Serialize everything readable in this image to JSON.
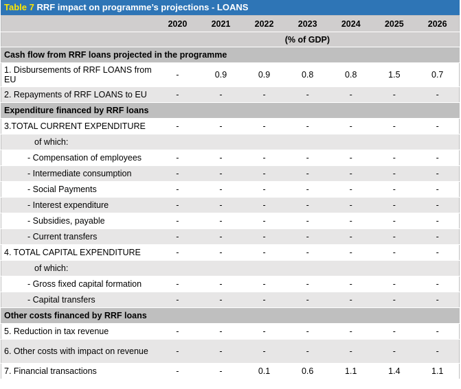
{
  "title": {
    "number": "Table 7",
    "text": "RRF impact on programme’s projections - LOANS"
  },
  "years": [
    "2020",
    "2021",
    "2022",
    "2023",
    "2024",
    "2025",
    "2026"
  ],
  "unit": "(% of GDP)",
  "rows": [
    {
      "kind": "section",
      "label": "Cash flow from RRF loans projected in the programme"
    },
    {
      "kind": "data",
      "shade": "light",
      "tall": true,
      "label": "1. Disbursements of RRF LOANS from EU",
      "values": [
        "-",
        "0.9",
        "0.9",
        "0.8",
        "0.8",
        "1.5",
        "0.7"
      ]
    },
    {
      "kind": "data",
      "shade": "grey",
      "label": "2. Repayments of RRF LOANS to EU",
      "values": [
        "-",
        "-",
        "-",
        "-",
        "-",
        "-",
        "-"
      ]
    },
    {
      "kind": "section",
      "label": "Expenditure financed by RRF loans"
    },
    {
      "kind": "data",
      "shade": "light",
      "label": "3.TOTAL CURRENT EXPENDITURE",
      "values": [
        "-",
        "-",
        "-",
        "-",
        "-",
        "-",
        "-"
      ]
    },
    {
      "kind": "of",
      "shade": "grey",
      "label": "of which:"
    },
    {
      "kind": "item",
      "shade": "light",
      "label": "- Compensation of employees",
      "values": [
        "-",
        "-",
        "-",
        "-",
        "-",
        "-",
        "-"
      ]
    },
    {
      "kind": "item",
      "shade": "grey",
      "label": "- Intermediate consumption",
      "values": [
        "-",
        "-",
        "-",
        "-",
        "-",
        "-",
        "-"
      ]
    },
    {
      "kind": "item",
      "shade": "light",
      "label": "- Social Payments",
      "values": [
        "-",
        "-",
        "-",
        "-",
        "-",
        "-",
        "-"
      ]
    },
    {
      "kind": "item",
      "shade": "grey",
      "label": "- Interest expenditure",
      "values": [
        "-",
        "-",
        "-",
        "-",
        "-",
        "-",
        "-"
      ]
    },
    {
      "kind": "item",
      "shade": "light",
      "label": "- Subsidies, payable",
      "values": [
        "-",
        "-",
        "-",
        "-",
        "-",
        "-",
        "-"
      ]
    },
    {
      "kind": "item",
      "shade": "grey",
      "label": "- Current transfers",
      "values": [
        "-",
        "-",
        "-",
        "-",
        "-",
        "-",
        "-"
      ]
    },
    {
      "kind": "data",
      "shade": "light",
      "label": "4. TOTAL CAPITAL EXPENDITURE",
      "values": [
        "-",
        "-",
        "-",
        "-",
        "-",
        "-",
        "-"
      ]
    },
    {
      "kind": "of",
      "shade": "grey",
      "label": "of which:"
    },
    {
      "kind": "item",
      "shade": "light",
      "label": "- Gross fixed capital formation",
      "values": [
        "-",
        "-",
        "-",
        "-",
        "-",
        "-",
        "-"
      ]
    },
    {
      "kind": "item",
      "shade": "grey",
      "label": "- Capital transfers",
      "values": [
        "-",
        "-",
        "-",
        "-",
        "-",
        "-",
        "-"
      ]
    },
    {
      "kind": "section",
      "label": "Other costs financed by RRF loans"
    },
    {
      "kind": "data",
      "shade": "light",
      "label": "5. Reduction in tax revenue",
      "values": [
        "-",
        "-",
        "-",
        "-",
        "-",
        "-",
        "-"
      ]
    },
    {
      "kind": "data",
      "shade": "grey",
      "tall": true,
      "label": "6. Other costs with impact on revenue",
      "values": [
        "-",
        "-",
        "-",
        "-",
        "-",
        "-",
        "-"
      ]
    },
    {
      "kind": "data",
      "shade": "light",
      "label": "7. Financial transactions",
      "values": [
        "-",
        "-",
        "0.1",
        "0.6",
        "1.1",
        "1.4",
        "1.1"
      ]
    }
  ]
}
